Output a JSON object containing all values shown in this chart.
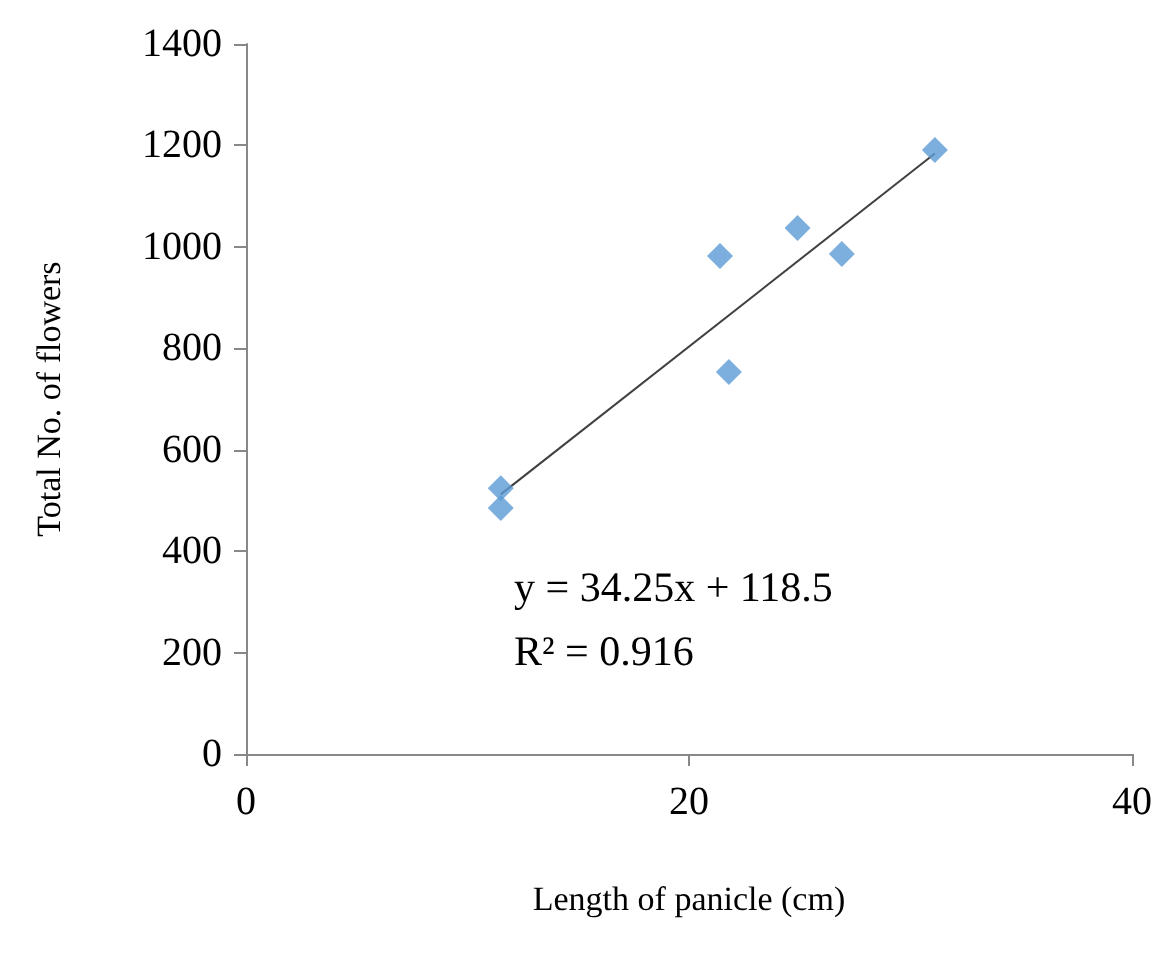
{
  "chart_data": {
    "type": "scatter",
    "xlabel": "Length of panicle (cm)",
    "ylabel": "Total No. of flowers",
    "xlim": [
      0,
      40
    ],
    "xticks": [
      0,
      20,
      40
    ],
    "ylim": [
      0,
      1400
    ],
    "yticks": [
      0,
      200,
      400,
      600,
      800,
      1000,
      1200,
      1400
    ],
    "grid": false,
    "marker": "diamond",
    "series": [
      {
        "color": "#5b9bd5",
        "x": [
          11.5,
          11.5,
          21.4,
          21.8,
          24.9,
          26.9,
          31.1
        ],
        "values": [
          524,
          485,
          982,
          753,
          1037,
          986,
          1191
        ]
      },
      {
        "type": "line",
        "marker": "none",
        "color": "#404040",
        "x": [
          11.5,
          31.1
        ],
        "values": [
          512,
          1184
        ]
      }
    ],
    "annotations": [
      "y = 34.25x + 118.5",
      "R² = 0.916"
    ]
  }
}
